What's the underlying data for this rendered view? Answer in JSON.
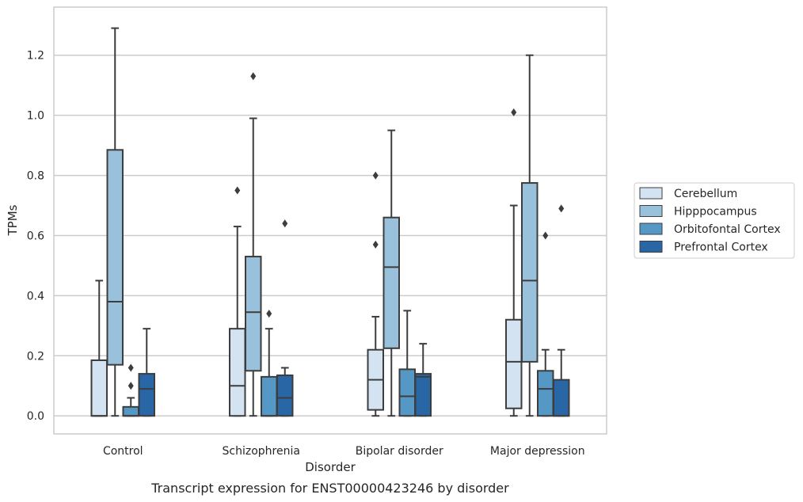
{
  "caption": "Transcript expression for ENST00000423246 by disorder",
  "chart_data": {
    "type": "boxplot",
    "xlabel": "Disorder",
    "ylabel": "TPMs",
    "ylim": [
      -0.06,
      1.36
    ],
    "yticks": [
      0.0,
      0.2,
      0.4,
      0.6,
      0.8,
      1.0,
      1.2
    ],
    "ytick_labels": [
      "0.0",
      "0.2",
      "0.4",
      "0.6",
      "0.8",
      "1.0",
      "1.2"
    ],
    "grid": "horizontal",
    "legend_position": "right",
    "categories": [
      "Control",
      "Schizophrenia",
      "Bipolar disorder",
      "Major depression"
    ],
    "series": [
      {
        "name": "Cerebellum",
        "color": "#d4e3f1",
        "boxes": [
          {
            "whislo": 0.0,
            "q1": 0.0,
            "med": 0.0,
            "q3": 0.185,
            "whishi": 0.45,
            "fliers": []
          },
          {
            "whislo": 0.0,
            "q1": 0.0,
            "med": 0.1,
            "q3": 0.29,
            "whishi": 0.63,
            "fliers": [
              0.75
            ]
          },
          {
            "whislo": 0.0,
            "q1": 0.02,
            "med": 0.12,
            "q3": 0.22,
            "whishi": 0.33,
            "fliers": [
              0.57,
              0.8
            ]
          },
          {
            "whislo": 0.0,
            "q1": 0.025,
            "med": 0.18,
            "q3": 0.32,
            "whishi": 0.7,
            "fliers": [
              1.01
            ]
          }
        ]
      },
      {
        "name": "Hipppocampus",
        "color": "#9ac1db",
        "boxes": [
          {
            "whislo": 0.0,
            "q1": 0.17,
            "med": 0.38,
            "q3": 0.885,
            "whishi": 1.29,
            "fliers": []
          },
          {
            "whislo": 0.0,
            "q1": 0.15,
            "med": 0.345,
            "q3": 0.53,
            "whishi": 0.99,
            "fliers": [
              1.13
            ]
          },
          {
            "whislo": 0.0,
            "q1": 0.225,
            "med": 0.495,
            "q3": 0.66,
            "whishi": 0.95,
            "fliers": []
          },
          {
            "whislo": 0.0,
            "q1": 0.18,
            "med": 0.45,
            "q3": 0.775,
            "whishi": 1.2,
            "fliers": []
          }
        ]
      },
      {
        "name": "Orbitofontal Cortex",
        "color": "#5597c5",
        "boxes": [
          {
            "whislo": 0.0,
            "q1": 0.0,
            "med": 0.0,
            "q3": 0.03,
            "whishi": 0.06,
            "fliers": [
              0.1,
              0.16
            ]
          },
          {
            "whislo": 0.0,
            "q1": 0.0,
            "med": 0.0,
            "q3": 0.13,
            "whishi": 0.29,
            "fliers": [
              0.34
            ]
          },
          {
            "whislo": 0.0,
            "q1": 0.0,
            "med": 0.065,
            "q3": 0.155,
            "whishi": 0.35,
            "fliers": []
          },
          {
            "whislo": 0.0,
            "q1": 0.0,
            "med": 0.09,
            "q3": 0.15,
            "whishi": 0.22,
            "fliers": [
              0.6
            ]
          }
        ]
      },
      {
        "name": "Prefrontal Cortex",
        "color": "#2966a6",
        "boxes": [
          {
            "whislo": 0.0,
            "q1": 0.0,
            "med": 0.09,
            "q3": 0.14,
            "whishi": 0.29,
            "fliers": []
          },
          {
            "whislo": 0.0,
            "q1": 0.0,
            "med": 0.06,
            "q3": 0.135,
            "whishi": 0.16,
            "fliers": [
              0.64
            ]
          },
          {
            "whislo": 0.0,
            "q1": 0.0,
            "med": 0.13,
            "q3": 0.14,
            "whishi": 0.24,
            "fliers": []
          },
          {
            "whislo": 0.0,
            "q1": 0.0,
            "med": 0.0,
            "q3": 0.12,
            "whishi": 0.22,
            "fliers": [
              0.69
            ]
          }
        ]
      }
    ]
  }
}
